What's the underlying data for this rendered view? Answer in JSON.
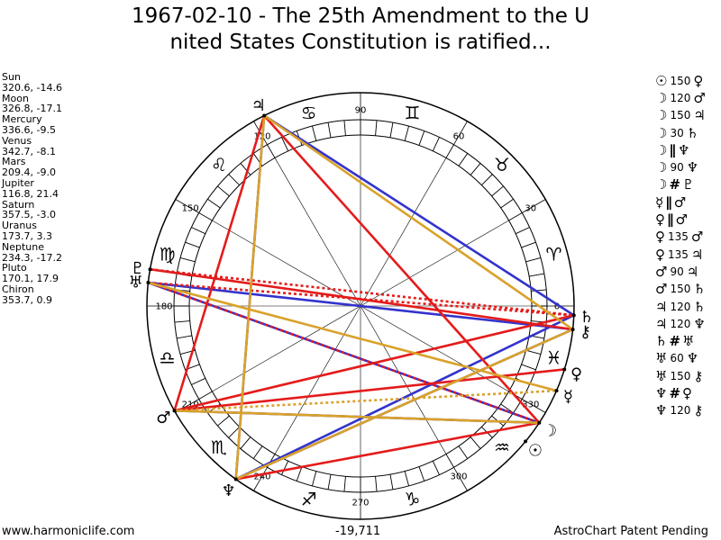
{
  "title": {
    "line1": "1967-02-10 - The 25th Amendment to the U",
    "line2": "nited States Constitution is ratified..."
  },
  "planets": [
    {
      "name": "Sun",
      "values": "320.6, -14.6",
      "glyph": "☉",
      "color": "#000000"
    },
    {
      "name": "Moon",
      "values": "326.8, -17.1",
      "glyph": "☽",
      "color": "#000000"
    },
    {
      "name": "Mercury",
      "values": "336.6, -9.5",
      "glyph": "☿",
      "color": "#000000"
    },
    {
      "name": "Venus",
      "values": "342.7, -8.1",
      "glyph": "♀",
      "color": "#000000"
    },
    {
      "name": "Mars",
      "values": "209.4, -9.0",
      "glyph": "♂",
      "color": "#000000"
    },
    {
      "name": "Jupiter",
      "values": "116.8, 21.4",
      "glyph": "♃",
      "color": "#000000"
    },
    {
      "name": "Saturn",
      "values": "357.5, -3.0",
      "glyph": "♄",
      "color": "#000000"
    },
    {
      "name": "Uranus",
      "values": "173.7, 3.3",
      "glyph": "♅",
      "color": "#000000"
    },
    {
      "name": "Neptune",
      "values": "234.3, -17.2",
      "glyph": "♆",
      "color": "#000000"
    },
    {
      "name": "Pluto",
      "values": "170.1, 17.9",
      "glyph": "♇",
      "color": "#000000"
    },
    {
      "name": "Chiron",
      "values": "353.7, 0.9",
      "glyph": "⚷",
      "color": "#000000"
    }
  ],
  "aspects": [
    {
      "p1": "☉",
      "angle": "150",
      "p2": "♀",
      "sym": ""
    },
    {
      "p1": "☽",
      "angle": "120",
      "p2": "♂",
      "sym": ""
    },
    {
      "p1": "☽",
      "angle": "150",
      "p2": "♃",
      "sym": ""
    },
    {
      "p1": "☽",
      "angle": "30",
      "p2": "♄",
      "sym": ""
    },
    {
      "p1": "☽",
      "angle": "",
      "p2": "♆",
      "sym": "∥"
    },
    {
      "p1": "☽",
      "angle": "90",
      "p2": "♆",
      "sym": ""
    },
    {
      "p1": "☽",
      "angle": "",
      "p2": "♇",
      "sym": "#"
    },
    {
      "p1": "☿",
      "angle": "",
      "p2": "♂",
      "sym": "∥"
    },
    {
      "p1": "♀",
      "angle": "",
      "p2": "♂",
      "sym": "∥"
    },
    {
      "p1": "♀",
      "angle": "135",
      "p2": "♂",
      "sym": ""
    },
    {
      "p1": "♀",
      "angle": "135",
      "p2": "♃",
      "sym": ""
    },
    {
      "p1": "♂",
      "angle": "90",
      "p2": "♃",
      "sym": ""
    },
    {
      "p1": "♂",
      "angle": "150",
      "p2": "♄",
      "sym": ""
    },
    {
      "p1": "♃",
      "angle": "120",
      "p2": "♄",
      "sym": ""
    },
    {
      "p1": "♃",
      "angle": "120",
      "p2": "♆",
      "sym": ""
    },
    {
      "p1": "♄",
      "angle": "",
      "p2": "♅",
      "sym": "#"
    },
    {
      "p1": "♅",
      "angle": "60",
      "p2": "♆",
      "sym": ""
    },
    {
      "p1": "♅",
      "angle": "150",
      "p2": "⚷",
      "sym": ""
    },
    {
      "p1": "♆",
      "angle": "",
      "p2": "♀",
      "sym": "#"
    },
    {
      "p1": "♆",
      "angle": "120",
      "p2": "⚷",
      "sym": ""
    }
  ],
  "wheel": {
    "degree_labels": [
      {
        "deg": 0,
        "text": "0"
      },
      {
        "deg": 30,
        "text": "30"
      },
      {
        "deg": 60,
        "text": "60"
      },
      {
        "deg": 90,
        "text": "90"
      },
      {
        "deg": 120,
        "text": "120"
      },
      {
        "deg": 150,
        "text": "150"
      },
      {
        "deg": 180,
        "text": "180"
      },
      {
        "deg": 210,
        "text": "210"
      },
      {
        "deg": 240,
        "text": "240"
      },
      {
        "deg": 270,
        "text": "270"
      },
      {
        "deg": 300,
        "text": "300"
      },
      {
        "deg": 330,
        "text": "330"
      }
    ],
    "signs": [
      {
        "name": "aries",
        "glyph": "♈"
      },
      {
        "name": "taurus",
        "glyph": "♉"
      },
      {
        "name": "gemini",
        "glyph": "♊"
      },
      {
        "name": "cancer",
        "glyph": "♋"
      },
      {
        "name": "leo",
        "glyph": "♌"
      },
      {
        "name": "virgo",
        "glyph": "♍"
      },
      {
        "name": "libra",
        "glyph": "♎"
      },
      {
        "name": "scorpio",
        "glyph": "♏"
      },
      {
        "name": "sagittarius",
        "glyph": "♐"
      },
      {
        "name": "capricorn",
        "glyph": "♑"
      },
      {
        "name": "aquarius",
        "glyph": "♒"
      },
      {
        "name": "pisces",
        "glyph": "♓"
      }
    ],
    "aspect_colors": {
      "trine": "#3333cc",
      "opposition_square": "#e41b1b",
      "quincunx": "#d9a22a"
    },
    "aspect_lines": [
      {
        "p1": "Jupiter",
        "p2": "Neptune",
        "color": "#3333cc",
        "dashed": false
      },
      {
        "p1": "Jupiter",
        "p2": "Saturn",
        "color": "#3333cc",
        "dashed": false
      },
      {
        "p1": "Uranus",
        "p2": "Moon",
        "color": "#3333cc",
        "dashed": false
      },
      {
        "p1": "Saturn",
        "p2": "Neptune",
        "color": "#3333cc",
        "dashed": false
      },
      {
        "p1": "Chiron",
        "p2": "Neptune",
        "color": "#3333cc",
        "dashed": false
      },
      {
        "p1": "Moon",
        "p2": "Mars",
        "color": "#3333cc",
        "dashed": false
      },
      {
        "p1": "Uranus",
        "p2": "Chiron",
        "color": "#3333cc",
        "dashed": false
      },
      {
        "p1": "Jupiter",
        "p2": "Mars",
        "color": "#e41b1b",
        "dashed": false
      },
      {
        "p1": "Jupiter",
        "p2": "Moon",
        "color": "#e41b1b",
        "dashed": false
      },
      {
        "p1": "Mars",
        "p2": "Venus",
        "color": "#e41b1b",
        "dashed": false
      },
      {
        "p1": "Pluto",
        "p2": "Chiron",
        "color": "#e41b1b",
        "dashed": false
      },
      {
        "p1": "Pluto",
        "p2": "Saturn",
        "color": "#e41b1b",
        "dashed": true
      },
      {
        "p1": "Uranus",
        "p2": "Saturn",
        "color": "#e41b1b",
        "dashed": true
      },
      {
        "p1": "Neptune",
        "p2": "Moon",
        "color": "#e41b1b",
        "dashed": false
      },
      {
        "p1": "Mars",
        "p2": "Saturn",
        "color": "#e41b1b",
        "dashed": false
      },
      {
        "p1": "Uranus",
        "p2": "Moon",
        "color": "#e41b1b",
        "dashed": true
      },
      {
        "p1": "Jupiter",
        "p2": "Chiron",
        "color": "#d9a22a",
        "dashed": false
      },
      {
        "p1": "Jupiter",
        "p2": "Neptune",
        "color": "#d9a22a",
        "dashed": false
      },
      {
        "p1": "Neptune",
        "p2": "Chiron",
        "color": "#d9a22a",
        "dashed": false
      },
      {
        "p1": "Mars",
        "p2": "Moon",
        "color": "#d9a22a",
        "dashed": false
      },
      {
        "p1": "Mars",
        "p2": "Mercury",
        "color": "#d9a22a",
        "dashed": true
      },
      {
        "p1": "Mercury",
        "p2": "Uranus",
        "color": "#d9a22a",
        "dashed": false
      }
    ]
  },
  "footer": {
    "left": "www.harmoniclife.com",
    "center": "-19,711",
    "right": "AstroChart Patent Pending"
  }
}
